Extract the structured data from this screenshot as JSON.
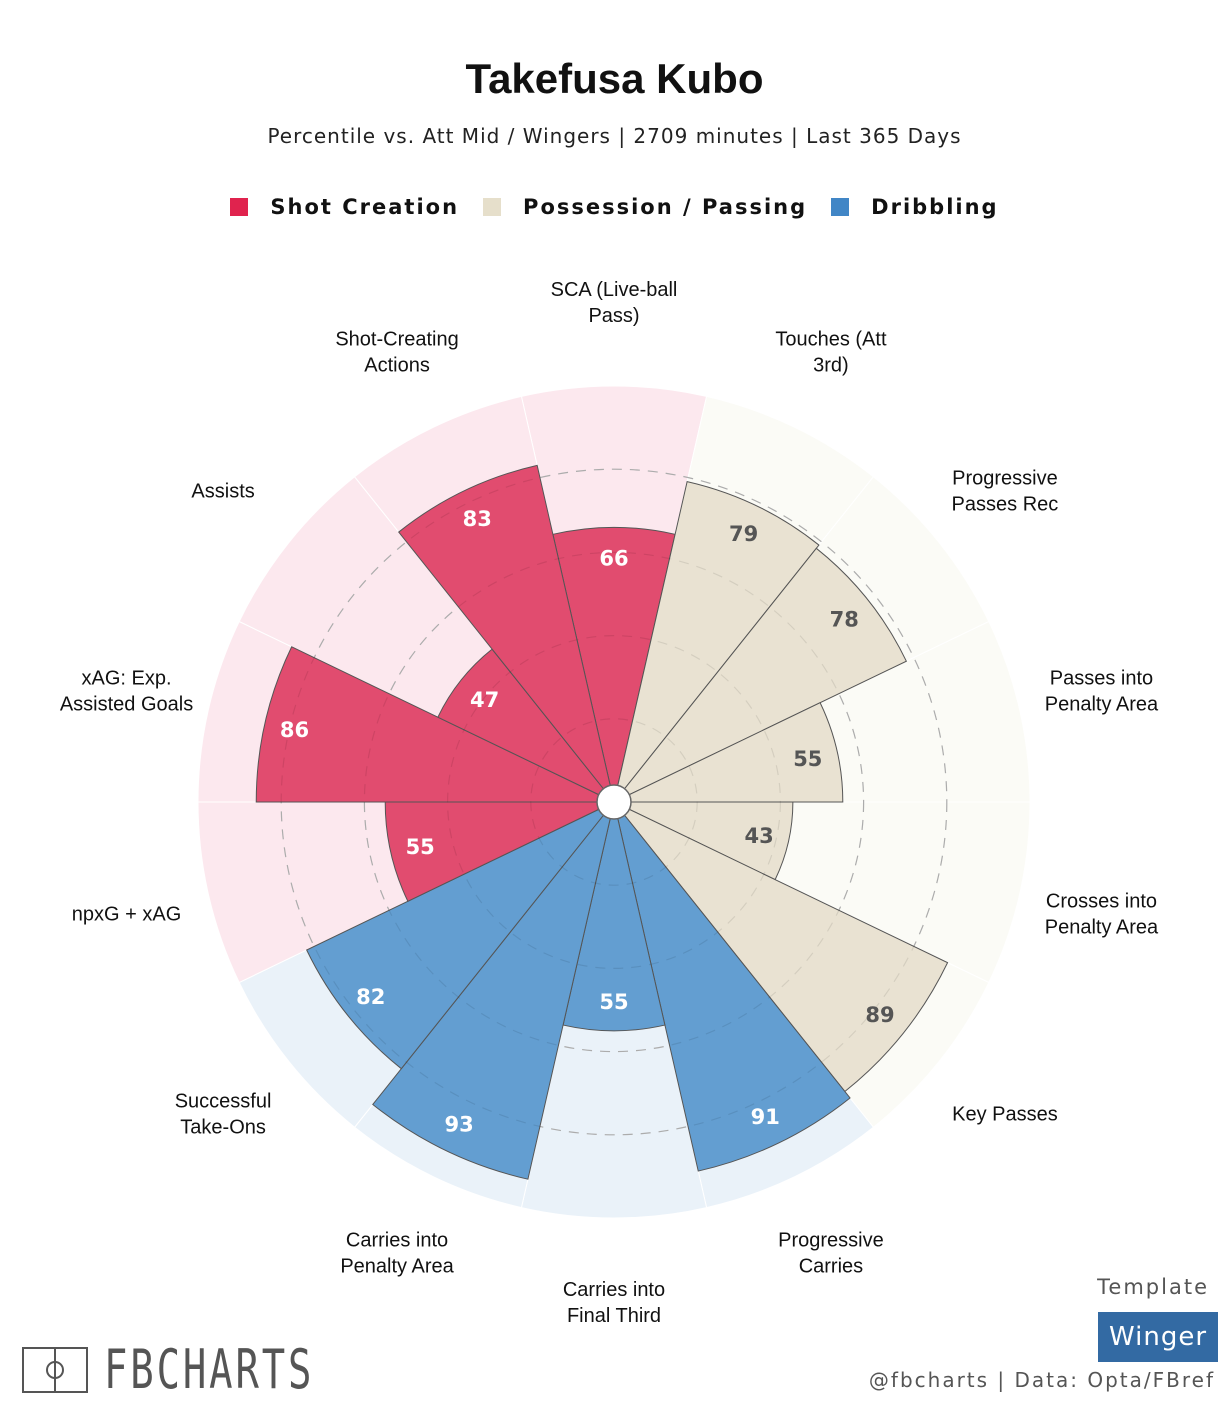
{
  "chart_data": {
    "type": "pie",
    "subtype": "polar-bar (pizza)",
    "title": "Takefusa Kubo",
    "subtitle": "Percentile vs. Att Mid / Wingers | 2709 minutes | Last 365 Days",
    "rlim": [
      0,
      100
    ],
    "grid": "dashed circles at 20, 40, 60, 80",
    "legend_placement": "top",
    "legend": [
      {
        "name": "Shot Creation",
        "color": "#e0234e"
      },
      {
        "name": "Possession / Passing",
        "color": "#e6dfcb"
      },
      {
        "name": "Dribbling",
        "color": "#4186c6"
      }
    ],
    "group_colors": {
      "Shot Creation": {
        "fill": "#e0466a",
        "bg": "#fce8ee",
        "text": "#ffffff"
      },
      "Possession / Passing": {
        "fill": "#e8e1d1",
        "bg": "#fbfbf6",
        "text": "#555555"
      },
      "Dribbling": {
        "fill": "#5e9bcf",
        "bg": "#eaf2f9",
        "text": "#ffffff"
      }
    },
    "categories": [
      {
        "label": "SCA (Live-ball\nPass)",
        "value": 66,
        "group": "Shot Creation"
      },
      {
        "label": "Touches (Att\n3rd)",
        "value": 79,
        "group": "Possession / Passing"
      },
      {
        "label": "Progressive\nPasses Rec",
        "value": 78,
        "group": "Possession / Passing"
      },
      {
        "label": "Passes into\nPenalty Area",
        "value": 55,
        "group": "Possession / Passing"
      },
      {
        "label": "Crosses into\nPenalty Area",
        "value": 43,
        "group": "Possession / Passing"
      },
      {
        "label": "Key Passes",
        "value": 89,
        "group": "Possession / Passing"
      },
      {
        "label": "Progressive\nCarries",
        "value": 91,
        "group": "Dribbling"
      },
      {
        "label": "Carries into\nFinal Third",
        "value": 55,
        "group": "Dribbling"
      },
      {
        "label": "Carries into\nPenalty Area",
        "value": 93,
        "group": "Dribbling"
      },
      {
        "label": "Successful\nTake-Ons",
        "value": 82,
        "group": "Dribbling"
      },
      {
        "label": "npxG + xAG",
        "value": 55,
        "group": "Shot Creation"
      },
      {
        "label": "xAG: Exp.\nAssisted Goals",
        "value": 86,
        "group": "Shot Creation"
      },
      {
        "label": "Assists",
        "value": 47,
        "group": "Shot Creation"
      },
      {
        "label": "Shot-Creating\nActions",
        "value": 83,
        "group": "Shot Creation"
      }
    ]
  },
  "footer": {
    "template_label": "Template",
    "template_value": "Winger",
    "credit": "@fbcharts | Data: Opta/FBref",
    "logo_text": "FBCHARTS"
  }
}
